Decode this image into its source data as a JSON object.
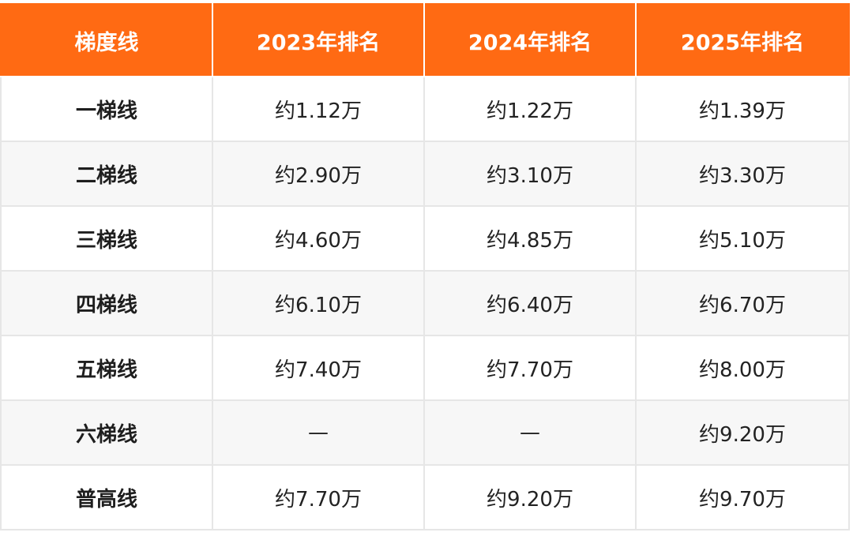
{
  "table": {
    "headers": [
      "梯度线",
      "2023年排名",
      "2024年排名",
      "2025年排名"
    ],
    "rows": [
      [
        "一梯线",
        "约1.12万",
        "约1.22万",
        "约1.39万"
      ],
      [
        "二梯线",
        "约2.90万",
        "约3.10万",
        "约3.30万"
      ],
      [
        "三梯线",
        "约4.60万",
        "约4.85万",
        "约5.10万"
      ],
      [
        "四梯线",
        "约6.10万",
        "约6.40万",
        "约6.70万"
      ],
      [
        "五梯线",
        "约7.40万",
        "约7.70万",
        "约8.00万"
      ],
      [
        "六梯线",
        "—",
        "—",
        "约9.20万"
      ],
      [
        "普高线",
        "约7.70万",
        "约9.20万",
        "约9.70万"
      ]
    ]
  },
  "colors": {
    "header_bg": "#ff6a13",
    "header_text": "#ffffff",
    "row_alt_bg": "#f7f7f7",
    "border": "#e6e6e6"
  }
}
